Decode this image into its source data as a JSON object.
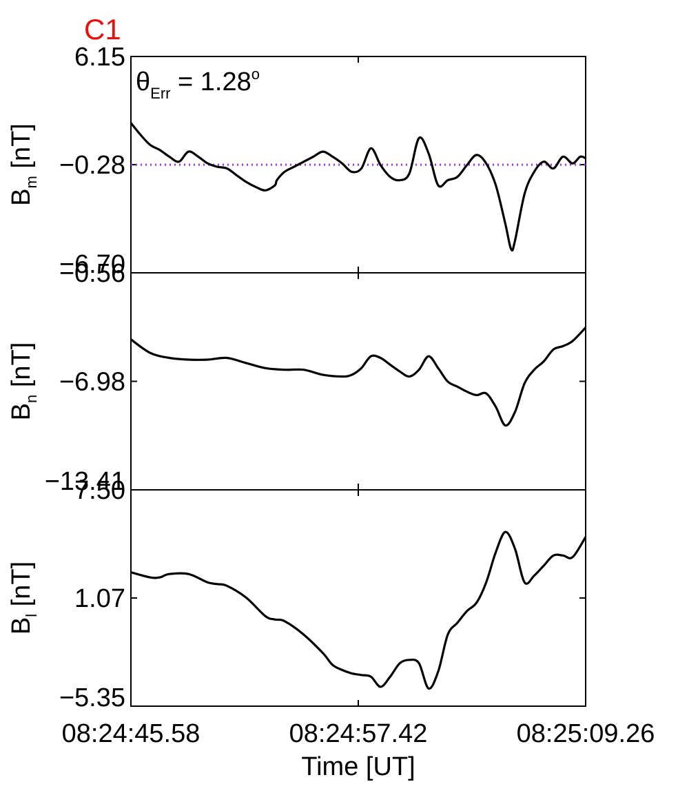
{
  "figure": {
    "title": "C1",
    "title_color": "#e8100e",
    "xlabel": "Time [UT]",
    "x_ticks": [
      "08:24:45.58",
      "08:24:57.42",
      "08:25:09.26"
    ],
    "annotation": {
      "symbol": "θ",
      "subscript": "Err",
      "equals": " =  1.28",
      "superscript": "o"
    }
  },
  "chart_data": [
    {
      "type": "line",
      "panel": "Bm",
      "ylabel": {
        "main": "B",
        "sub": "m",
        "unit": " [nT]"
      },
      "y_ticks": [
        "6.15",
        "−0.28",
        "−6.70"
      ],
      "ylim": [
        -6.7,
        6.15
      ],
      "xlim": [
        0,
        23.68
      ],
      "grid": false,
      "reference_line": {
        "y": -0.28,
        "style": "dotted",
        "color": "#9b30e0"
      },
      "series": [
        {
          "x": [
            0,
            0.5,
            1.0,
            1.5,
            2.0,
            2.5,
            3.0,
            3.5,
            4.0,
            4.5,
            5.0,
            5.5,
            6.0,
            6.5,
            7.0,
            7.5,
            7.6,
            8.0,
            8.5,
            9.0,
            9.5,
            10.0,
            10.5,
            11.0,
            11.5,
            12.0,
            12.5,
            13.0,
            13.5,
            14.0,
            14.5,
            15.0,
            15.5,
            16.0,
            16.5,
            17.0,
            17.5,
            18.0,
            18.5,
            19.0,
            19.5,
            19.8,
            20.0,
            20.5,
            21.0,
            21.5,
            22.0,
            22.5,
            23.0,
            23.4,
            23.68
          ],
          "y": [
            2.2,
            1.5,
            0.9,
            0.6,
            0.2,
            -0.1,
            0.5,
            0.2,
            -0.2,
            -0.4,
            -0.5,
            -0.9,
            -1.3,
            -1.6,
            -1.8,
            -1.5,
            -1.2,
            -0.7,
            -0.4,
            -0.1,
            0.2,
            0.5,
            0.2,
            -0.2,
            -0.7,
            -0.5,
            0.7,
            -0.3,
            -1.0,
            -1.2,
            -0.8,
            1.3,
            0.4,
            -1.5,
            -1.2,
            -1.0,
            -0.3,
            0.3,
            -0.2,
            -1.5,
            -3.8,
            -5.3,
            -4.8,
            -2.0,
            -0.7,
            -0.1,
            -0.5,
            0.2,
            -0.2,
            0.2,
            0.1
          ],
          "color": "#000000"
        }
      ]
    },
    {
      "type": "line",
      "panel": "Bn",
      "ylabel": {
        "main": "B",
        "sub": "n",
        "unit": " [nT]"
      },
      "y_ticks": [
        "−0.56",
        "−6.98",
        "−13.41"
      ],
      "ylim": [
        -13.41,
        -0.56
      ],
      "xlim": [
        0,
        23.68
      ],
      "grid": false,
      "series": [
        {
          "x": [
            0,
            1,
            2,
            3,
            4,
            5,
            6,
            7,
            8,
            9,
            10,
            11,
            11.5,
            12,
            12.5,
            13,
            13.5,
            14,
            14.5,
            15,
            15.5,
            16,
            16.5,
            17,
            17.5,
            18,
            18.5,
            19,
            19.5,
            20,
            20.5,
            21,
            21.5,
            22,
            22.5,
            23,
            23.68
          ],
          "y": [
            -4.5,
            -5.3,
            -5.6,
            -5.7,
            -5.7,
            -5.6,
            -5.9,
            -6.2,
            -6.3,
            -6.3,
            -6.6,
            -6.7,
            -6.6,
            -6.2,
            -5.5,
            -5.6,
            -6.0,
            -6.4,
            -6.7,
            -6.3,
            -5.5,
            -6.2,
            -7.0,
            -7.3,
            -7.6,
            -7.8,
            -7.7,
            -8.5,
            -9.6,
            -8.8,
            -7.1,
            -6.3,
            -5.8,
            -5.1,
            -4.9,
            -4.6,
            -3.8
          ],
          "color": "#000000"
        }
      ]
    },
    {
      "type": "line",
      "panel": "Bl",
      "ylabel": {
        "main": "B",
        "sub": "l",
        "unit": " [nT]"
      },
      "y_ticks": [
        "7.50",
        "1.07",
        "−5.35"
      ],
      "ylim": [
        -5.35,
        7.5
      ],
      "xlim": [
        0,
        23.68
      ],
      "grid": false,
      "series": [
        {
          "x": [
            0,
            1,
            1.5,
            2,
            3,
            4,
            4.5,
            5,
            6,
            7,
            7.5,
            8,
            9,
            10,
            10.5,
            11,
            11.5,
            12,
            12.5,
            13,
            13.5,
            14,
            14.5,
            15,
            15.5,
            16,
            16.5,
            17,
            17.5,
            18,
            18.5,
            19,
            19.5,
            20,
            20.5,
            21,
            21.5,
            22,
            22.5,
            23,
            23.68
          ],
          "y": [
            2.6,
            2.3,
            2.3,
            2.5,
            2.5,
            2.0,
            1.9,
            1.8,
            1.1,
            0,
            -0.2,
            -0.3,
            -1.1,
            -2.2,
            -2.9,
            -3.2,
            -3.4,
            -3.5,
            -3.6,
            -4.2,
            -3.6,
            -2.8,
            -2.6,
            -2.8,
            -4.3,
            -3.3,
            -1.1,
            -0.4,
            0.3,
            0.8,
            2.0,
            3.8,
            5.0,
            4.0,
            2.0,
            2.4,
            3.0,
            3.6,
            3.6,
            3.5,
            4.7
          ],
          "color": "#000000"
        }
      ]
    }
  ]
}
